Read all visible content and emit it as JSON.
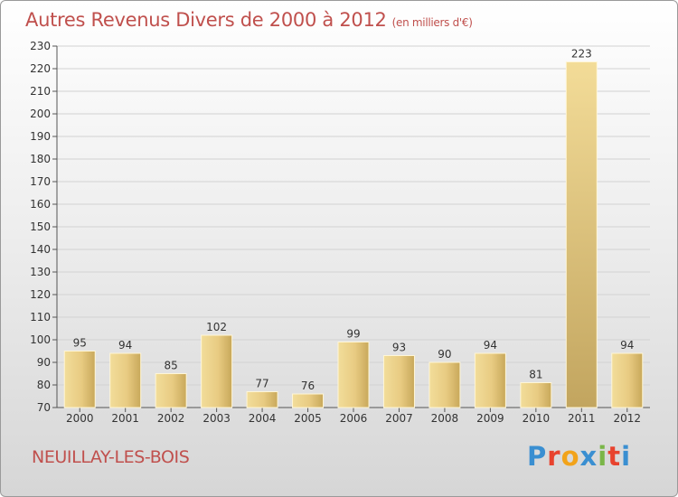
{
  "header": {
    "title": "Autres Revenus Divers de 2000 à 2012",
    "subtitle": "(en milliers d'€)"
  },
  "footer": {
    "town": "NEUILLAY-LES-BOIS",
    "logo": [
      "P",
      "r",
      "o",
      "x",
      "i",
      "t",
      "i"
    ],
    "logo_colors": [
      "#3a8fd1",
      "#e8432e",
      "#f2a31a",
      "#3a8fd1",
      "#7ab648",
      "#e8432e",
      "#3a8fd1"
    ]
  },
  "chart_data": {
    "type": "bar",
    "categories": [
      "2000",
      "2001",
      "2002",
      "2003",
      "2004",
      "2005",
      "2006",
      "2007",
      "2008",
      "2009",
      "2010",
      "2011",
      "2012"
    ],
    "values": [
      95,
      94,
      85,
      102,
      77,
      76,
      99,
      93,
      90,
      94,
      81,
      223,
      94
    ],
    "title": "Autres Revenus Divers de 2000 à 2012",
    "ylim": [
      70,
      230
    ],
    "yticks": [
      70,
      80,
      90,
      100,
      110,
      120,
      130,
      140,
      150,
      160,
      170,
      180,
      190,
      200,
      210,
      220,
      230
    ],
    "grid": true,
    "bar_color": "#e3c67c"
  }
}
